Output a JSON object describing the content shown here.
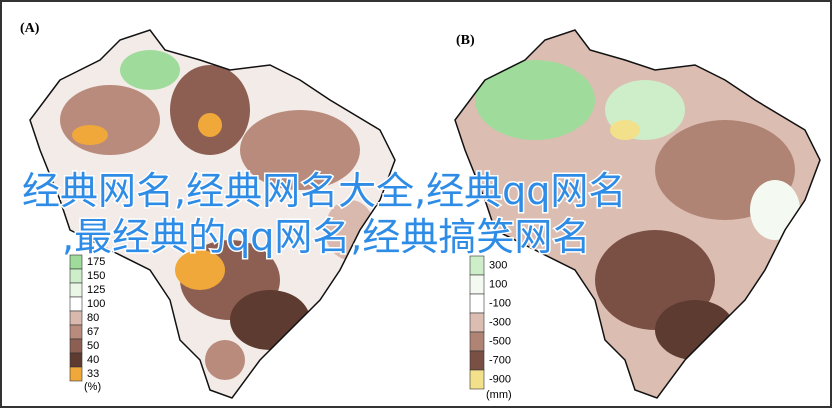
{
  "panels": [
    {
      "label": "(A)",
      "legend": {
        "items": [
          {
            "label": "175",
            "color": "#9fdc9b"
          },
          {
            "label": "150",
            "color": "#cdeec9"
          },
          {
            "label": "125",
            "color": "#eaf7e6"
          },
          {
            "label": "100",
            "color": "#ffffff"
          },
          {
            "label": "80",
            "color": "#d9b9ad"
          },
          {
            "label": "67",
            "color": "#b88b7c"
          },
          {
            "label": "50",
            "color": "#8c5f52"
          },
          {
            "label": "40",
            "color": "#5e3b31"
          },
          {
            "label": "33",
            "color": "#f0a83a"
          }
        ],
        "unit": "(%)"
      }
    },
    {
      "label": "(B)",
      "legend": {
        "items": [
          {
            "label": "300",
            "color": "#cdeec9"
          },
          {
            "label": "100",
            "color": "#f4faf2"
          },
          {
            "label": "-100",
            "color": "#ffffff"
          },
          {
            "label": "-300",
            "color": "#dbbdb2"
          },
          {
            "label": "-500",
            "color": "#b08475"
          },
          {
            "label": "-700",
            "color": "#7a5045"
          },
          {
            "label": "-900",
            "color": "#f3e08a"
          }
        ],
        "unit": "(mm)"
      }
    }
  ],
  "overlay": {
    "lines": [
      "经典网名,经典网名大全,经典qq网名",
      ",最经典的qq网名,经典搞笑网名"
    ]
  }
}
